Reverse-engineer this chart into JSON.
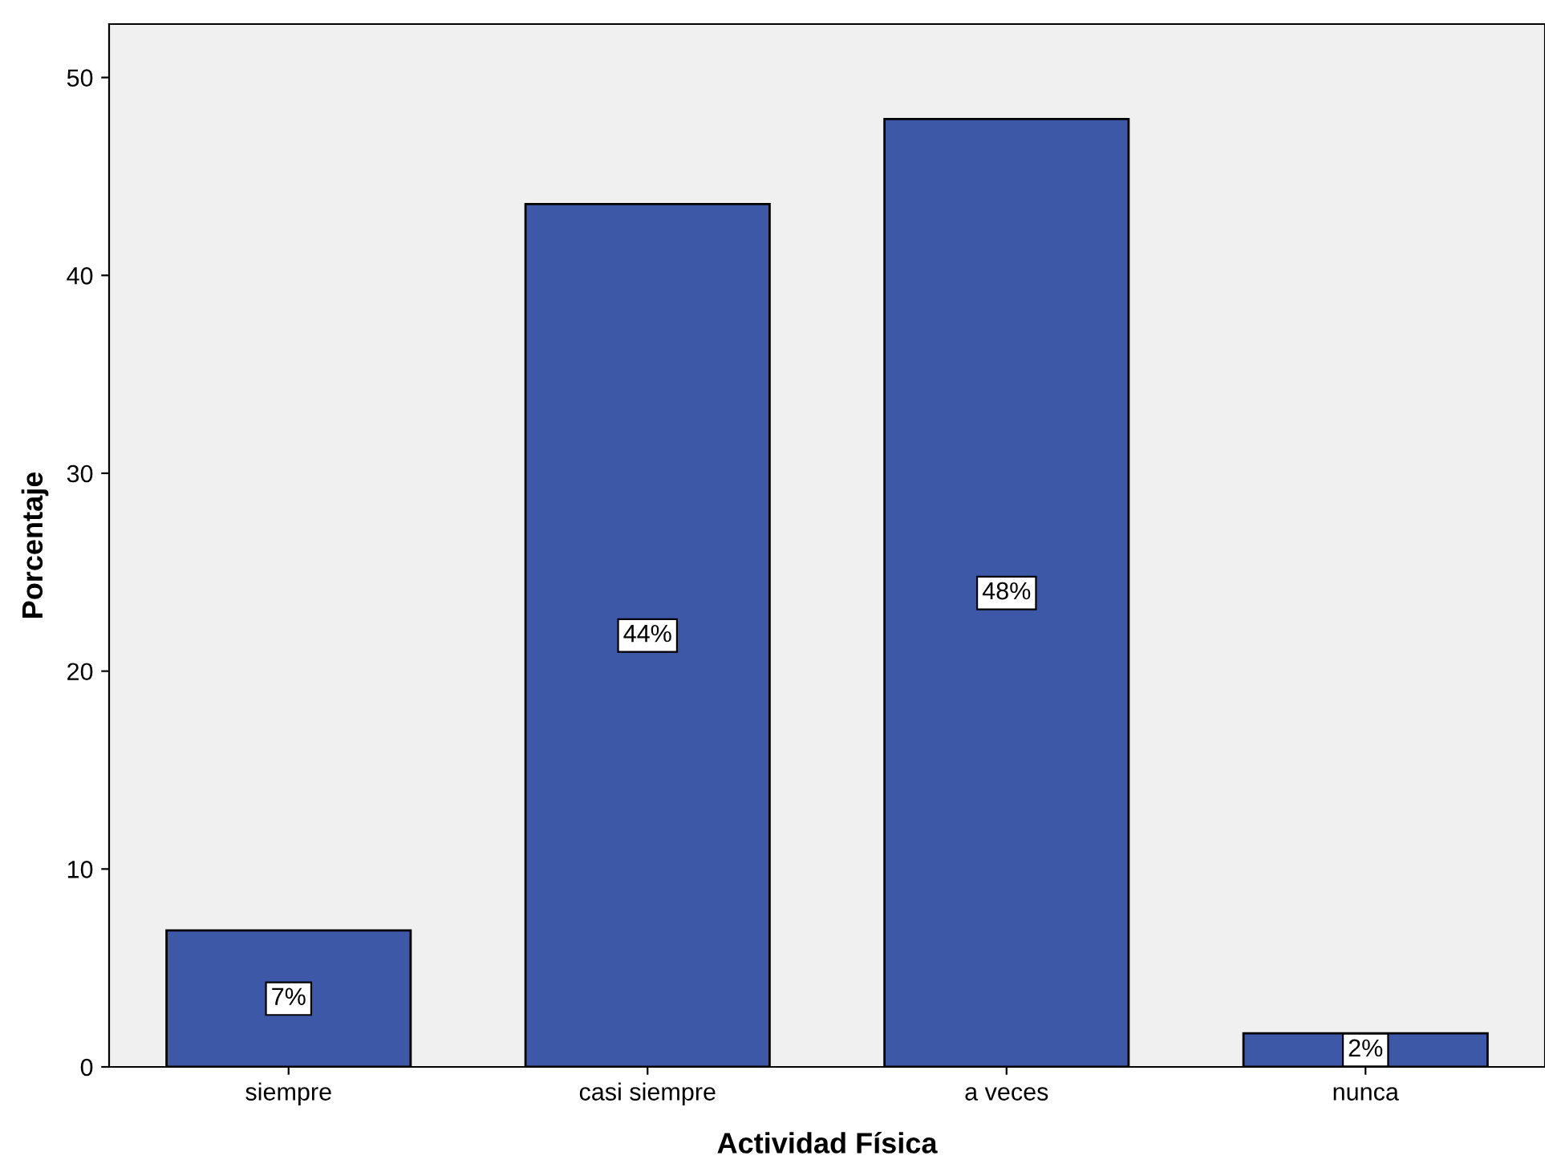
{
  "chart_data": {
    "type": "bar",
    "xlabel": "Actividad Física",
    "ylabel": "Porcentaje",
    "categories": [
      "siempre",
      "casi siempre",
      "a veces",
      "nunca"
    ],
    "values": [
      6.9,
      43.6,
      47.9,
      1.7
    ],
    "value_labels": [
      "7%",
      "44%",
      "48%",
      "2%"
    ],
    "color": "#3e58a8",
    "ylim": [
      0,
      52.7
    ],
    "yticks": [
      0,
      10,
      20,
      30,
      40,
      50
    ],
    "grid": false
  }
}
